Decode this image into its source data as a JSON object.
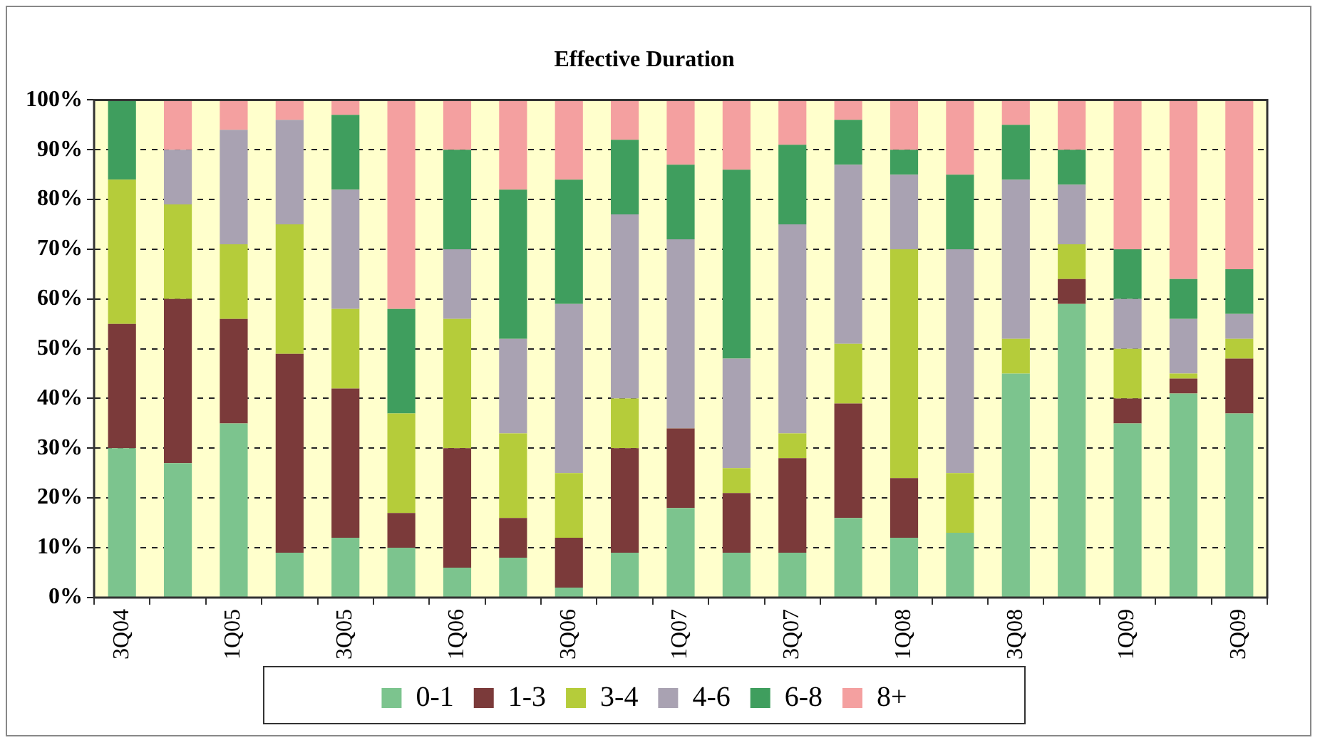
{
  "chart_data": {
    "type": "bar",
    "title": "Effective Duration",
    "stacked": true,
    "categories": [
      "3Q04",
      null,
      "1Q05",
      null,
      "3Q05",
      null,
      "1Q06",
      null,
      "3Q06",
      null,
      "1Q07",
      null,
      "3Q07",
      null,
      "1Q08",
      null,
      "3Q08",
      null,
      "1Q09",
      null,
      "3Q09"
    ],
    "series": [
      {
        "name": "0-1",
        "color": "#7cc48e",
        "values": [
          30,
          27,
          35,
          9,
          12,
          10,
          6,
          8,
          2,
          9,
          18,
          9,
          9,
          16,
          12,
          13,
          45,
          59,
          35,
          41,
          37
        ]
      },
      {
        "name": "1-3",
        "color": "#7b3a3a",
        "values": [
          25,
          33,
          21,
          40,
          30,
          7,
          24,
          8,
          10,
          21,
          16,
          12,
          19,
          23,
          12,
          0,
          0,
          5,
          5,
          3,
          11
        ]
      },
      {
        "name": "3-4",
        "color": "#b5cc3a",
        "values": [
          29,
          19,
          15,
          26,
          16,
          20,
          26,
          17,
          13,
          10,
          0,
          5,
          5,
          12,
          46,
          12,
          7,
          7,
          10,
          1,
          4
        ]
      },
      {
        "name": "4-6",
        "color": "#a9a2b2",
        "values": [
          0,
          11,
          23,
          21,
          24,
          0,
          14,
          19,
          34,
          37,
          38,
          22,
          42,
          36,
          15,
          45,
          32,
          12,
          10,
          11,
          5
        ]
      },
      {
        "name": "6-8",
        "color": "#3f9e5e",
        "values": [
          16,
          0,
          0,
          0,
          15,
          21,
          20,
          30,
          25,
          15,
          15,
          38,
          16,
          9,
          5,
          15,
          11,
          7,
          10,
          8,
          9
        ]
      },
      {
        "name": "8+",
        "color": "#f4a0a0",
        "values": [
          0,
          10,
          6,
          4,
          3,
          42,
          10,
          18,
          16,
          8,
          13,
          14,
          9,
          4,
          10,
          15,
          5,
          10,
          30,
          36,
          34
        ]
      }
    ],
    "ylim": [
      0,
      100
    ],
    "yticks": [
      {
        "value": 0,
        "label": "0%"
      },
      {
        "value": 10,
        "label": "10%"
      },
      {
        "value": 20,
        "label": "20%"
      },
      {
        "value": 30,
        "label": "30%"
      },
      {
        "value": 40,
        "label": "40%"
      },
      {
        "value": 50,
        "label": "50%"
      },
      {
        "value": 60,
        "label": "60%"
      },
      {
        "value": 70,
        "label": "70%"
      },
      {
        "value": 80,
        "label": "80%"
      },
      {
        "value": 90,
        "label": "90%"
      },
      {
        "value": 100,
        "label": "100%"
      }
    ],
    "grid": "y",
    "legend": "bottom"
  }
}
